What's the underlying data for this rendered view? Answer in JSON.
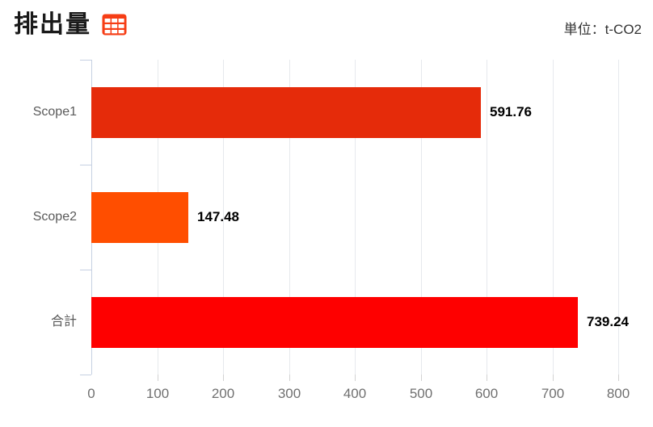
{
  "header": {
    "title": "排出量",
    "unit_label": "単位：t-CO2"
  },
  "icons": {
    "table_icon": "table-grid-icon"
  },
  "chart_data": {
    "type": "bar",
    "orientation": "horizontal",
    "title": "排出量",
    "unit": "t-CO2",
    "categories": [
      "Scope1",
      "Scope2",
      "合計"
    ],
    "values": [
      591.76,
      147.48,
      739.24
    ],
    "value_labels": [
      "591.76",
      "147.48",
      "739.24"
    ],
    "series": [
      {
        "name": "排出量",
        "values": [
          591.76,
          147.48,
          739.24
        ]
      }
    ],
    "bar_colors": [
      "#e52b0a",
      "#ff4e00",
      "#fe0000"
    ],
    "xlim": [
      0,
      800
    ],
    "x_ticks": [
      0,
      100,
      200,
      300,
      400,
      500,
      600,
      700,
      800
    ],
    "grid": true,
    "legend": false,
    "xlabel": "",
    "ylabel": ""
  },
  "colors": {
    "background": "#ffffff",
    "grid_line": "#e6e9ed",
    "axis_line": "#c6d0e2",
    "tick": "#d2d2d2",
    "tick_label": "#707070",
    "category_label": "#5a5a5a",
    "value_label": "#000000",
    "title": "#1a1a1a",
    "unit_label": "#333333",
    "icon": "#f63d15"
  }
}
